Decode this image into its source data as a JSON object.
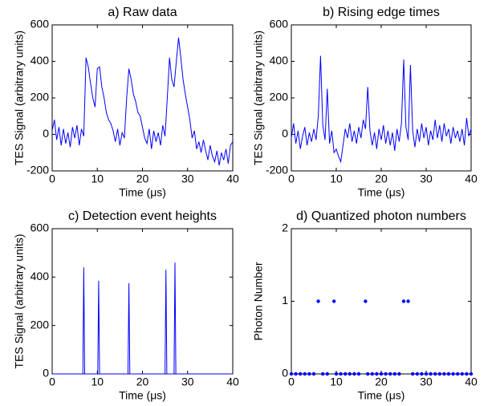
{
  "chart_data": [
    {
      "type": "line",
      "title": "a) Raw data",
      "xlabel": "Time (μs)",
      "ylabel": "TES Signal (arbitrary units)",
      "color": "#0000ff",
      "xlim": [
        0,
        40
      ],
      "ylim": [
        -200,
        600
      ],
      "xticks": [
        0,
        10,
        20,
        30,
        40
      ],
      "yticks": [
        -200,
        0,
        200,
        400,
        600
      ],
      "x": [
        0,
        0.5,
        1,
        1.5,
        2,
        2.5,
        3,
        3.5,
        4,
        4.5,
        5,
        5.5,
        6,
        6.5,
        7,
        7.5,
        8,
        8.5,
        9,
        9.5,
        10,
        10.5,
        11,
        11.5,
        12,
        12.5,
        13,
        13.5,
        14,
        14.5,
        15,
        15.5,
        16,
        16.5,
        17,
        17.5,
        18,
        18.5,
        19,
        19.5,
        20,
        20.5,
        21,
        21.5,
        22,
        22.5,
        23,
        23.5,
        24,
        24.5,
        25,
        25.5,
        26,
        26.5,
        27,
        27.5,
        28,
        28.5,
        29,
        29.5,
        30,
        30.5,
        31,
        31.5,
        32,
        32.5,
        33,
        33.5,
        34,
        34.5,
        35,
        35.5,
        36,
        36.5,
        37,
        37.5,
        38,
        38.5,
        39,
        39.5,
        40
      ],
      "values": [
        20,
        80,
        -30,
        40,
        -60,
        30,
        -50,
        10,
        -70,
        40,
        -20,
        50,
        -60,
        30,
        -10,
        420,
        370,
        280,
        200,
        150,
        360,
        370,
        260,
        200,
        120,
        80,
        60,
        20,
        -40,
        30,
        -60,
        10,
        -20,
        200,
        360,
        300,
        220,
        180,
        120,
        100,
        40,
        -20,
        -50,
        30,
        -80,
        20,
        -40,
        10,
        -60,
        50,
        -10,
        200,
        420,
        300,
        260,
        400,
        530,
        420,
        300,
        220,
        150,
        80,
        -20,
        20,
        -80,
        -40,
        -100,
        -30,
        -90,
        -140,
        -60,
        -120,
        -150,
        -90,
        -170,
        -100,
        -140,
        -80,
        -160,
        -60,
        -40
      ]
    },
    {
      "type": "line",
      "title": "b) Rising edge times",
      "xlabel": "Time (μs)",
      "ylabel": "TES Signal (arbitrary units)",
      "color": "#0000ff",
      "xlim": [
        0,
        40
      ],
      "ylim": [
        -200,
        600
      ],
      "xticks": [
        0,
        10,
        20,
        30,
        40
      ],
      "yticks": [
        -200,
        0,
        200,
        400,
        600
      ],
      "x": [
        0,
        0.5,
        1,
        1.5,
        2,
        2.5,
        3,
        3.5,
        4,
        4.5,
        5,
        5.5,
        6,
        6.5,
        7,
        7.5,
        8,
        8.5,
        9,
        9.5,
        10,
        10.5,
        11,
        11.5,
        12,
        12.5,
        13,
        13.5,
        14,
        14.5,
        15,
        15.5,
        16,
        16.5,
        17,
        17.5,
        18,
        18.5,
        19,
        19.5,
        20,
        20.5,
        21,
        21.5,
        22,
        22.5,
        23,
        23.5,
        24,
        24.5,
        25,
        25.5,
        26,
        26.5,
        27,
        27.5,
        28,
        28.5,
        29,
        29.5,
        30,
        30.5,
        31,
        31.5,
        32,
        32.5,
        33,
        33.5,
        34,
        34.5,
        35,
        35.5,
        36,
        36.5,
        37,
        37.5,
        38,
        38.5,
        39,
        39.5,
        40
      ],
      "values": [
        -20,
        60,
        -50,
        20,
        -80,
        -10,
        40,
        -60,
        10,
        -40,
        30,
        -30,
        100,
        430,
        50,
        -30,
        250,
        -50,
        20,
        -100,
        -80,
        -120,
        -150,
        -60,
        30,
        -20,
        60,
        -40,
        20,
        -50,
        40,
        -20,
        80,
        30,
        260,
        20,
        -60,
        10,
        -80,
        30,
        -30,
        50,
        -50,
        20,
        -60,
        10,
        -90,
        30,
        -40,
        60,
        410,
        40,
        -30,
        380,
        20,
        -70,
        30,
        -40,
        60,
        -20,
        40,
        -60,
        20,
        -30,
        80,
        -20,
        50,
        -40,
        60,
        -10,
        30,
        -50,
        40,
        -20,
        20,
        -40,
        30,
        -60,
        90,
        -10,
        30
      ]
    },
    {
      "type": "line",
      "title": "c) Detection event heights",
      "xlabel": "Time (μs)",
      "ylabel": "TES Signal (arbitrary units)",
      "color": "#0000ff",
      "xlim": [
        0,
        40
      ],
      "ylim": [
        0,
        600
      ],
      "xticks": [
        0,
        10,
        20,
        30,
        40
      ],
      "yticks": [
        0,
        200,
        400,
        600
      ],
      "x": [
        0,
        6.8,
        7,
        7.2,
        10.1,
        10.3,
        10.5,
        16.8,
        17,
        17.2,
        25,
        25.2,
        25.4,
        27,
        27.2,
        27.4,
        40
      ],
      "values": [
        0,
        0,
        440,
        0,
        0,
        385,
        0,
        0,
        375,
        0,
        0,
        430,
        0,
        0,
        460,
        0,
        0
      ]
    },
    {
      "type": "scatter",
      "title": "d) Quantized photon numbers",
      "xlabel": "Time (μs)",
      "ylabel": "Photon Number",
      "color": "#0000ff",
      "xlim": [
        0,
        40
      ],
      "ylim": [
        0,
        2
      ],
      "xticks": [
        0,
        10,
        20,
        30,
        40
      ],
      "yticks": [
        0,
        1,
        2
      ],
      "x": [
        0,
        1,
        2,
        3,
        4,
        5,
        6,
        7,
        8,
        9.5,
        10,
        11,
        12,
        13,
        14,
        15,
        16.5,
        17,
        18,
        19,
        20,
        21,
        22,
        23,
        24,
        25,
        26,
        27,
        28,
        29,
        30,
        31,
        32,
        33,
        34,
        35,
        36,
        37,
        38,
        39,
        40
      ],
      "values": [
        0,
        0,
        0,
        0,
        0,
        0,
        1,
        0,
        0,
        1,
        0,
        0,
        0,
        0,
        0,
        0,
        1,
        0,
        0,
        0,
        0,
        0,
        0,
        0,
        0,
        1,
        1,
        0,
        0,
        0,
        0,
        0,
        0,
        0,
        0,
        0,
        0,
        0,
        0,
        0,
        0
      ]
    }
  ]
}
